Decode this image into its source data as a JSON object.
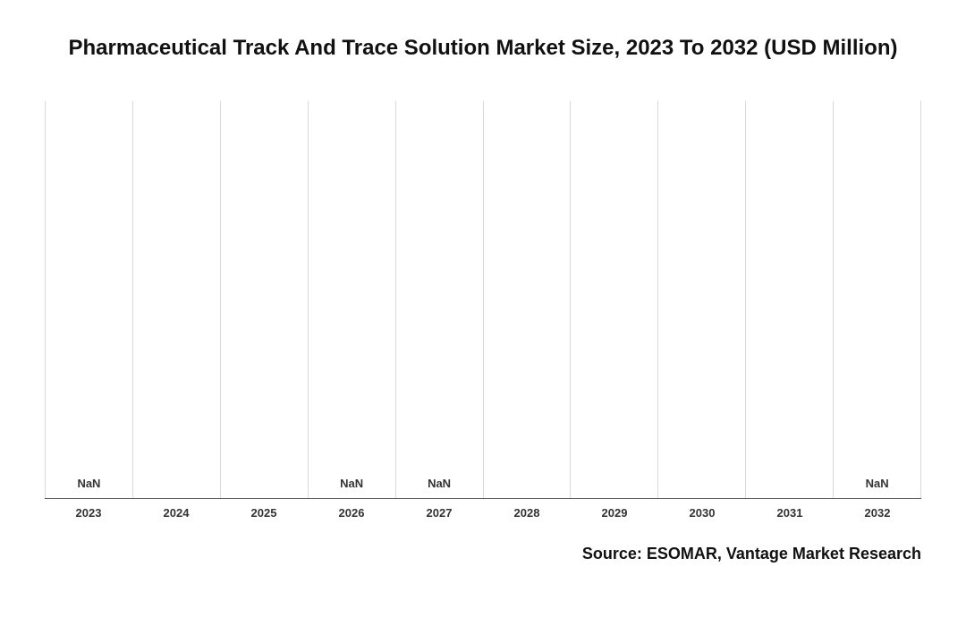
{
  "chart": {
    "type": "bar",
    "title": "Pharmaceutical Track And Trace Solution Market Size, 2023 To 2032 (USD Million)",
    "title_fontsize": 24,
    "title_color": "#111111",
    "background_color": "#ffffff",
    "grid_color": "#d9d9d9",
    "baseline_color": "#555555",
    "axis_label_color": "#333333",
    "axis_label_fontsize": 13,
    "value_label_fontsize": 13,
    "source_fontsize": 18,
    "categories": [
      "2023",
      "2024",
      "2025",
      "2026",
      "2027",
      "2028",
      "2029",
      "2030",
      "2031",
      "2032"
    ],
    "values": [
      null,
      null,
      null,
      null,
      null,
      null,
      null,
      null,
      null,
      null
    ],
    "value_labels": [
      "NaN",
      "",
      "",
      "NaN",
      "NaN",
      "",
      "",
      "",
      "",
      "NaN"
    ],
    "source": "Source: ESOMAR, Vantage Market Research"
  }
}
